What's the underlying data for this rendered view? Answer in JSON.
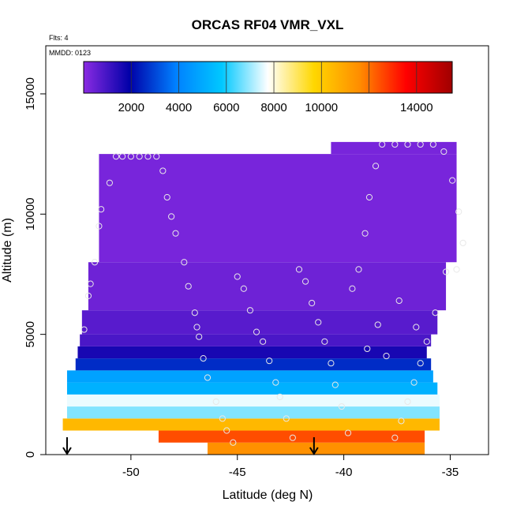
{
  "chart_data": {
    "type": "heatmap",
    "title": "ORCAS RF04 VMR_VXL",
    "annotations": {
      "flights": "Flts: 4",
      "date": "MMDD: 0123"
    },
    "xlabel": "Latitude (deg N)",
    "ylabel": "Altitude (m)",
    "xlim": [
      -54,
      -33.2
    ],
    "ylim": [
      0,
      17000
    ],
    "x_ticks": [
      -50,
      -45,
      -40,
      -35
    ],
    "x_tick_labels": [
      "-50",
      "-45",
      "-40",
      "-35"
    ],
    "y_ticks": [
      0,
      5000,
      10000,
      15000
    ],
    "y_tick_labels": [
      "0",
      "5000",
      "10000",
      "15000"
    ],
    "colorbar": {
      "range": [
        0,
        15500
      ],
      "ticks": [
        2000,
        4000,
        6000,
        8000,
        10000,
        14000
      ],
      "tick_labels": [
        "2000",
        "4000",
        "6000",
        "8000",
        "10000",
        "14000"
      ],
      "colors": [
        "#8a2be2",
        "#0000a8",
        "#0080ff",
        "#00c8ff",
        "#ffffff",
        "#ffd700",
        "#ff8c00",
        "#ff0000",
        "#a00000"
      ]
    },
    "series": [
      {
        "name": "altitude_bands",
        "rows": [
          {
            "alt_range": [
              0,
              500
            ],
            "lat_range": [
              -46.4,
              -36.2
            ],
            "value": 11500
          },
          {
            "alt_range": [
              500,
              1000
            ],
            "lat_range": [
              -48.7,
              -36.2
            ],
            "value": 12500
          },
          {
            "alt_range": [
              1000,
              1500
            ],
            "lat_range": [
              -53.2,
              -35.5
            ],
            "value": 10500
          },
          {
            "alt_range": [
              1500,
              2000
            ],
            "lat_range": [
              -53.0,
              -35.5
            ],
            "value": 6800
          },
          {
            "alt_range": [
              2000,
              2500
            ],
            "lat_range": [
              -53.0,
              -35.5
            ],
            "value": 7600
          },
          {
            "alt_range": [
              2500,
              3000
            ],
            "lat_range": [
              -53.0,
              -35.6
            ],
            "value": 5200
          },
          {
            "alt_range": [
              3000,
              3500
            ],
            "lat_range": [
              -53.0,
              -35.8
            ],
            "value": 4800
          },
          {
            "alt_range": [
              3500,
              4000
            ],
            "lat_range": [
              -52.6,
              -35.9
            ],
            "value": 2600
          },
          {
            "alt_range": [
              4000,
              4500
            ],
            "lat_range": [
              -52.5,
              -36.1
            ],
            "value": 1600
          },
          {
            "alt_range": [
              4500,
              5000
            ],
            "lat_range": [
              -52.4,
              -35.9
            ],
            "value": 900
          },
          {
            "alt_range": [
              5000,
              6000
            ],
            "lat_range": [
              -52.3,
              -35.6
            ],
            "value": 700
          },
          {
            "alt_range": [
              6000,
              8000
            ],
            "lat_range": [
              -52.0,
              -35.2
            ],
            "value": 400
          },
          {
            "alt_range": [
              8000,
              12500
            ],
            "lat_range": [
              -51.5,
              -34.7
            ],
            "value": 250
          },
          {
            "alt_range": [
              12500,
              13000
            ],
            "lat_range": [
              -40.6,
              -34.7
            ],
            "value": 250
          }
        ]
      },
      {
        "name": "sample_points",
        "points": [
          [
            -52.2,
            5200
          ],
          [
            -52.0,
            6600
          ],
          [
            -51.9,
            7100
          ],
          [
            -51.7,
            8000
          ],
          [
            -51.5,
            9500
          ],
          [
            -51.4,
            10200
          ],
          [
            -51.0,
            11300
          ],
          [
            -50.7,
            12400
          ],
          [
            -50.4,
            12400
          ],
          [
            -50.0,
            12400
          ],
          [
            -49.6,
            12400
          ],
          [
            -49.2,
            12400
          ],
          [
            -48.8,
            12400
          ],
          [
            -48.5,
            11800
          ],
          [
            -48.3,
            10700
          ],
          [
            -48.1,
            9900
          ],
          [
            -47.9,
            9200
          ],
          [
            -47.5,
            8000
          ],
          [
            -47.3,
            7000
          ],
          [
            -47.0,
            5900
          ],
          [
            -46.9,
            5300
          ],
          [
            -46.8,
            4900
          ],
          [
            -46.6,
            4000
          ],
          [
            -46.4,
            3200
          ],
          [
            -46.0,
            2200
          ],
          [
            -45.7,
            1500
          ],
          [
            -45.5,
            1000
          ],
          [
            -45.2,
            500
          ],
          [
            -45.0,
            7400
          ],
          [
            -44.7,
            6900
          ],
          [
            -44.4,
            6000
          ],
          [
            -44.1,
            5100
          ],
          [
            -43.8,
            4700
          ],
          [
            -43.5,
            3900
          ],
          [
            -43.2,
            3000
          ],
          [
            -43.0,
            2400
          ],
          [
            -42.7,
            1500
          ],
          [
            -42.4,
            700
          ],
          [
            -42.1,
            7700
          ],
          [
            -41.8,
            7200
          ],
          [
            -41.5,
            6300
          ],
          [
            -41.2,
            5500
          ],
          [
            -40.9,
            4700
          ],
          [
            -40.6,
            3800
          ],
          [
            -40.4,
            2900
          ],
          [
            -40.1,
            2000
          ],
          [
            -39.8,
            900
          ],
          [
            -39.6,
            6900
          ],
          [
            -39.3,
            7700
          ],
          [
            -39.0,
            9200
          ],
          [
            -38.8,
            10700
          ],
          [
            -38.5,
            12000
          ],
          [
            -38.2,
            12900
          ],
          [
            -37.6,
            12900
          ],
          [
            -37.0,
            12900
          ],
          [
            -36.4,
            12900
          ],
          [
            -35.8,
            12900
          ],
          [
            -35.3,
            12600
          ],
          [
            -34.9,
            11400
          ],
          [
            -34.6,
            10100
          ],
          [
            -34.4,
            8800
          ],
          [
            -34.7,
            7700
          ],
          [
            -35.2,
            7600
          ],
          [
            -35.7,
            5900
          ],
          [
            -36.1,
            4700
          ],
          [
            -36.4,
            3800
          ],
          [
            -36.7,
            3000
          ],
          [
            -37.0,
            2200
          ],
          [
            -37.3,
            1400
          ],
          [
            -37.6,
            700
          ],
          [
            -38.0,
            4100
          ],
          [
            -38.4,
            5400
          ],
          [
            -38.9,
            4400
          ],
          [
            -36.6,
            5300
          ],
          [
            -37.4,
            6400
          ]
        ]
      }
    ],
    "markers": [
      {
        "name": "arrow-start",
        "lat": -53.0
      },
      {
        "name": "arrow-mid",
        "lat": -41.4
      }
    ]
  }
}
